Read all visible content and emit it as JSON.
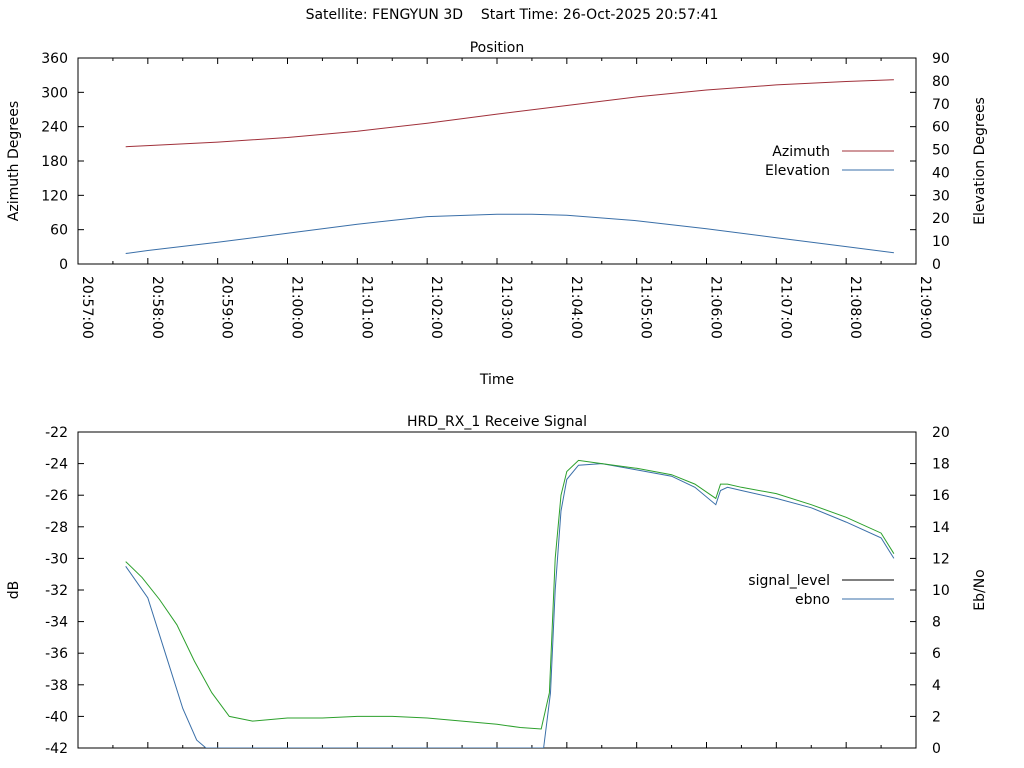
{
  "header": {
    "satellite": "Satellite: FENGYUN 3D",
    "start_time": "Start Time: 26-Oct-2025 20:57:41"
  },
  "chart_data": [
    {
      "type": "line",
      "title": "Position",
      "xlabel": "Time",
      "ylabel": "Azimuth Degrees",
      "ylabel_right": "Elevation Degrees",
      "x_ticks": [
        "20:57:00",
        "20:58:00",
        "20:59:00",
        "21:00:00",
        "21:01:00",
        "21:02:00",
        "21:03:00",
        "21:04:00",
        "21:05:00",
        "21:06:00",
        "21:07:00",
        "21:08:00",
        "21:09:00"
      ],
      "y_ticks": [
        "0",
        "60",
        "120",
        "180",
        "240",
        "300",
        "360"
      ],
      "y2_ticks": [
        "0",
        "10",
        "20",
        "30",
        "40",
        "50",
        "60",
        "70",
        "80",
        "90"
      ],
      "ylim": [
        0,
        360
      ],
      "y2lim": [
        0,
        90
      ],
      "xlim": [
        "20:57:00",
        "21:09:00"
      ],
      "legend_position": "right",
      "series": [
        {
          "name": "Azimuth",
          "axis": "left",
          "color": "#a0303a",
          "x": [
            "20:57:41",
            "20:58:00",
            "20:59:00",
            "21:00:00",
            "21:01:00",
            "21:02:00",
            "21:03:00",
            "21:04:00",
            "21:05:00",
            "21:06:00",
            "21:07:00",
            "21:08:00",
            "21:08:41"
          ],
          "values": [
            205,
            207,
            213,
            221,
            232,
            246,
            262,
            277,
            292,
            304,
            313,
            319,
            322
          ]
        },
        {
          "name": "Elevation",
          "axis": "right",
          "color": "#3a6fa8",
          "x": [
            "20:57:41",
            "20:58:00",
            "20:59:00",
            "21:00:00",
            "21:01:00",
            "21:02:00",
            "21:03:00",
            "21:03:30",
            "21:04:00",
            "21:05:00",
            "21:06:00",
            "21:07:00",
            "21:08:00",
            "21:08:41"
          ],
          "values": [
            4.6,
            5.9,
            9.5,
            13.4,
            17.4,
            20.7,
            21.7,
            21.7,
            21.3,
            18.9,
            15.4,
            11.5,
            7.6,
            4.9
          ]
        }
      ]
    },
    {
      "type": "line",
      "title": "HRD_RX_1 Receive Signal",
      "xlabel": "",
      "ylabel": "dB",
      "ylabel_right": "Eb/No",
      "y_ticks": [
        "-42",
        "-40",
        "-38",
        "-36",
        "-34",
        "-32",
        "-30",
        "-28",
        "-26",
        "-24",
        "-22"
      ],
      "y2_ticks": [
        "0",
        "2",
        "4",
        "6",
        "8",
        "10",
        "12",
        "14",
        "16",
        "18",
        "20"
      ],
      "ylim": [
        -42,
        -22
      ],
      "y2lim": [
        0,
        20
      ],
      "xlim": [
        "20:57:00",
        "21:09:00"
      ],
      "legend_position": "right",
      "series": [
        {
          "name": "signal_level",
          "axis": "left",
          "color": "#000000",
          "legend_only": true,
          "x": [],
          "values": []
        },
        {
          "name": "ebno",
          "axis": "right",
          "color": "#3a6fa8",
          "x": [
            "20:57:41",
            "20:58:00",
            "20:58:15",
            "20:58:30",
            "20:58:42",
            "20:58:50",
            "21:03:40",
            "21:03:46",
            "21:03:50",
            "21:03:55",
            "21:04:00",
            "21:04:10",
            "21:04:30",
            "21:05:00",
            "21:05:30",
            "21:05:50",
            "21:06:08",
            "21:06:12",
            "21:06:18",
            "21:06:30",
            "21:07:00",
            "21:07:30",
            "21:08:00",
            "21:08:30",
            "21:08:41"
          ],
          "values": [
            11.5,
            9.5,
            6.0,
            2.5,
            0.5,
            0.0,
            0.0,
            3.5,
            10.0,
            15.0,
            17.0,
            17.9,
            18.0,
            17.6,
            17.2,
            16.5,
            15.4,
            16.3,
            16.5,
            16.3,
            15.8,
            15.2,
            14.3,
            13.3,
            12.0
          ]
        },
        {
          "name": "",
          "axis": "right",
          "color": "#2ca02c",
          "x": [
            "20:57:41",
            "20:57:55",
            "20:58:10",
            "20:58:25",
            "20:58:40",
            "20:58:55",
            "20:59:10",
            "20:59:30",
            "21:00:00",
            "21:00:30",
            "21:01:00",
            "21:01:30",
            "21:02:00",
            "21:02:30",
            "21:03:00",
            "21:03:20",
            "21:03:38",
            "21:03:45",
            "21:03:50",
            "21:03:55",
            "21:04:00",
            "21:04:10",
            "21:04:30",
            "21:05:00",
            "21:05:30",
            "21:05:50",
            "21:06:08",
            "21:06:12",
            "21:06:18",
            "21:06:30",
            "21:07:00",
            "21:07:30",
            "21:08:00",
            "21:08:30",
            "21:08:41"
          ],
          "values": [
            11.8,
            10.8,
            9.4,
            7.8,
            5.5,
            3.5,
            2.0,
            1.7,
            1.9,
            1.9,
            2.0,
            2.0,
            1.9,
            1.7,
            1.5,
            1.3,
            1.2,
            3.5,
            12.0,
            16.0,
            17.5,
            18.2,
            18.0,
            17.7,
            17.3,
            16.7,
            15.8,
            16.7,
            16.7,
            16.5,
            16.1,
            15.4,
            14.6,
            13.6,
            12.3
          ]
        }
      ]
    }
  ]
}
